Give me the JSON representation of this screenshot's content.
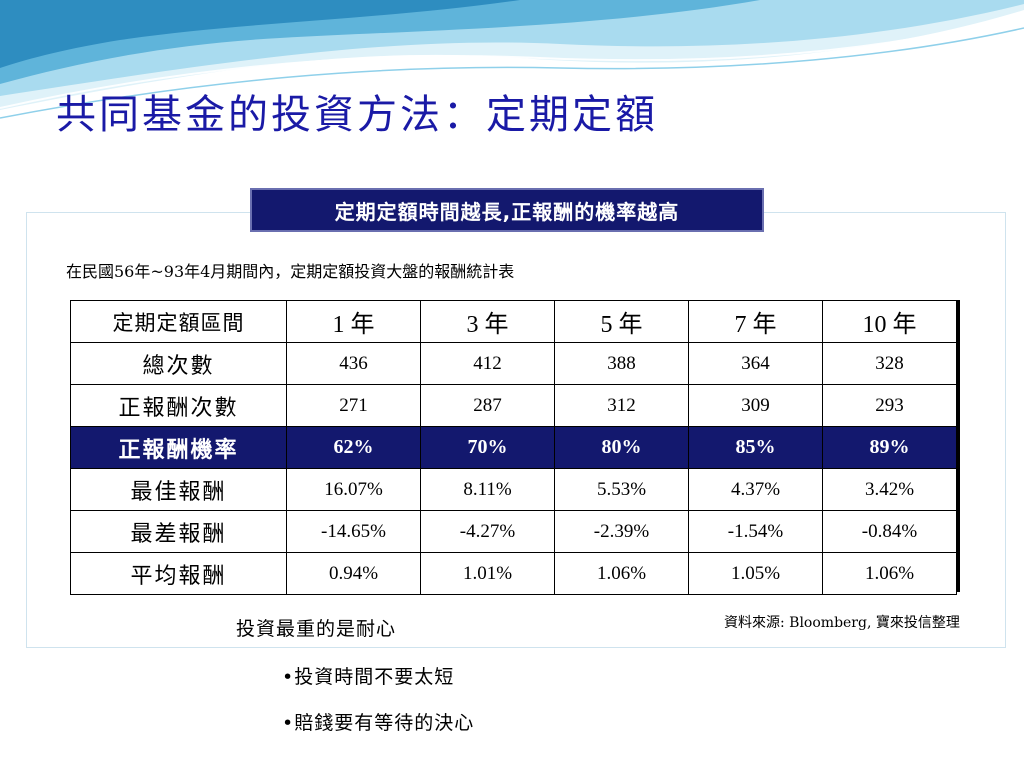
{
  "slide": {
    "title": "共同基金的投資方法：定期定額",
    "banner": "定期定額時間越長,正報酬的機率越高",
    "subtitle": "在民國56年~93年4月期間內，定期定額投資大盤的報酬統計表",
    "source": "資料來源: Bloomberg, 寶來投信整理",
    "note": "投資最重的是耐心",
    "bullets": [
      "•投資時間不要太短",
      "•賠錢要有等待的決心"
    ]
  },
  "table": {
    "header": [
      "定期定額區間",
      "1 年",
      "3 年",
      "5 年",
      "7 年",
      "10 年"
    ],
    "rows": [
      [
        "總次數",
        "436",
        "412",
        "388",
        "364",
        "328"
      ],
      [
        "正報酬次數",
        "271",
        "287",
        "312",
        "309",
        "293"
      ],
      [
        "正報酬機率",
        "62%",
        "70%",
        "80%",
        "85%",
        "89%"
      ],
      [
        "最佳報酬",
        "16.07%",
        "8.11%",
        "5.53%",
        "4.37%",
        "3.42%"
      ],
      [
        "最差報酬",
        "-14.65%",
        "-4.27%",
        "-2.39%",
        "-1.54%",
        "-0.84%"
      ],
      [
        "平均報酬",
        "0.94%",
        "1.01%",
        "1.06%",
        "1.05%",
        "1.06%"
      ]
    ],
    "highlight_color": "#13186e"
  },
  "colors": {
    "title": "#1a1aa6",
    "banner_bg": "#13186e",
    "wave_light": "#bfe6f3",
    "wave_mid": "#7cc6e3",
    "wave_dark": "#3f9cc8"
  }
}
